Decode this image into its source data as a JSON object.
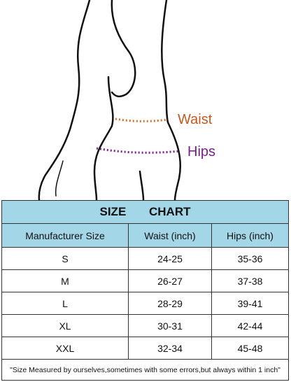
{
  "figure": {
    "waist_label": "Waist",
    "hips_label": "Hips"
  },
  "table": {
    "title": "SIZE CHART",
    "headers": [
      "Manufacturer Size",
      "Waist (inch)",
      "Hips (inch)"
    ],
    "rows": [
      [
        "S",
        "24-25",
        "35-36"
      ],
      [
        "M",
        "26-27",
        "37-38"
      ],
      [
        "L",
        "28-29",
        "39-41"
      ],
      [
        "XL",
        "30-31",
        "42-44"
      ],
      [
        "XXL",
        "32-34",
        "45-48"
      ]
    ],
    "footnote": "\"Size Measured by ourselves,sometimes with some errors,but always within 1 inch\""
  }
}
